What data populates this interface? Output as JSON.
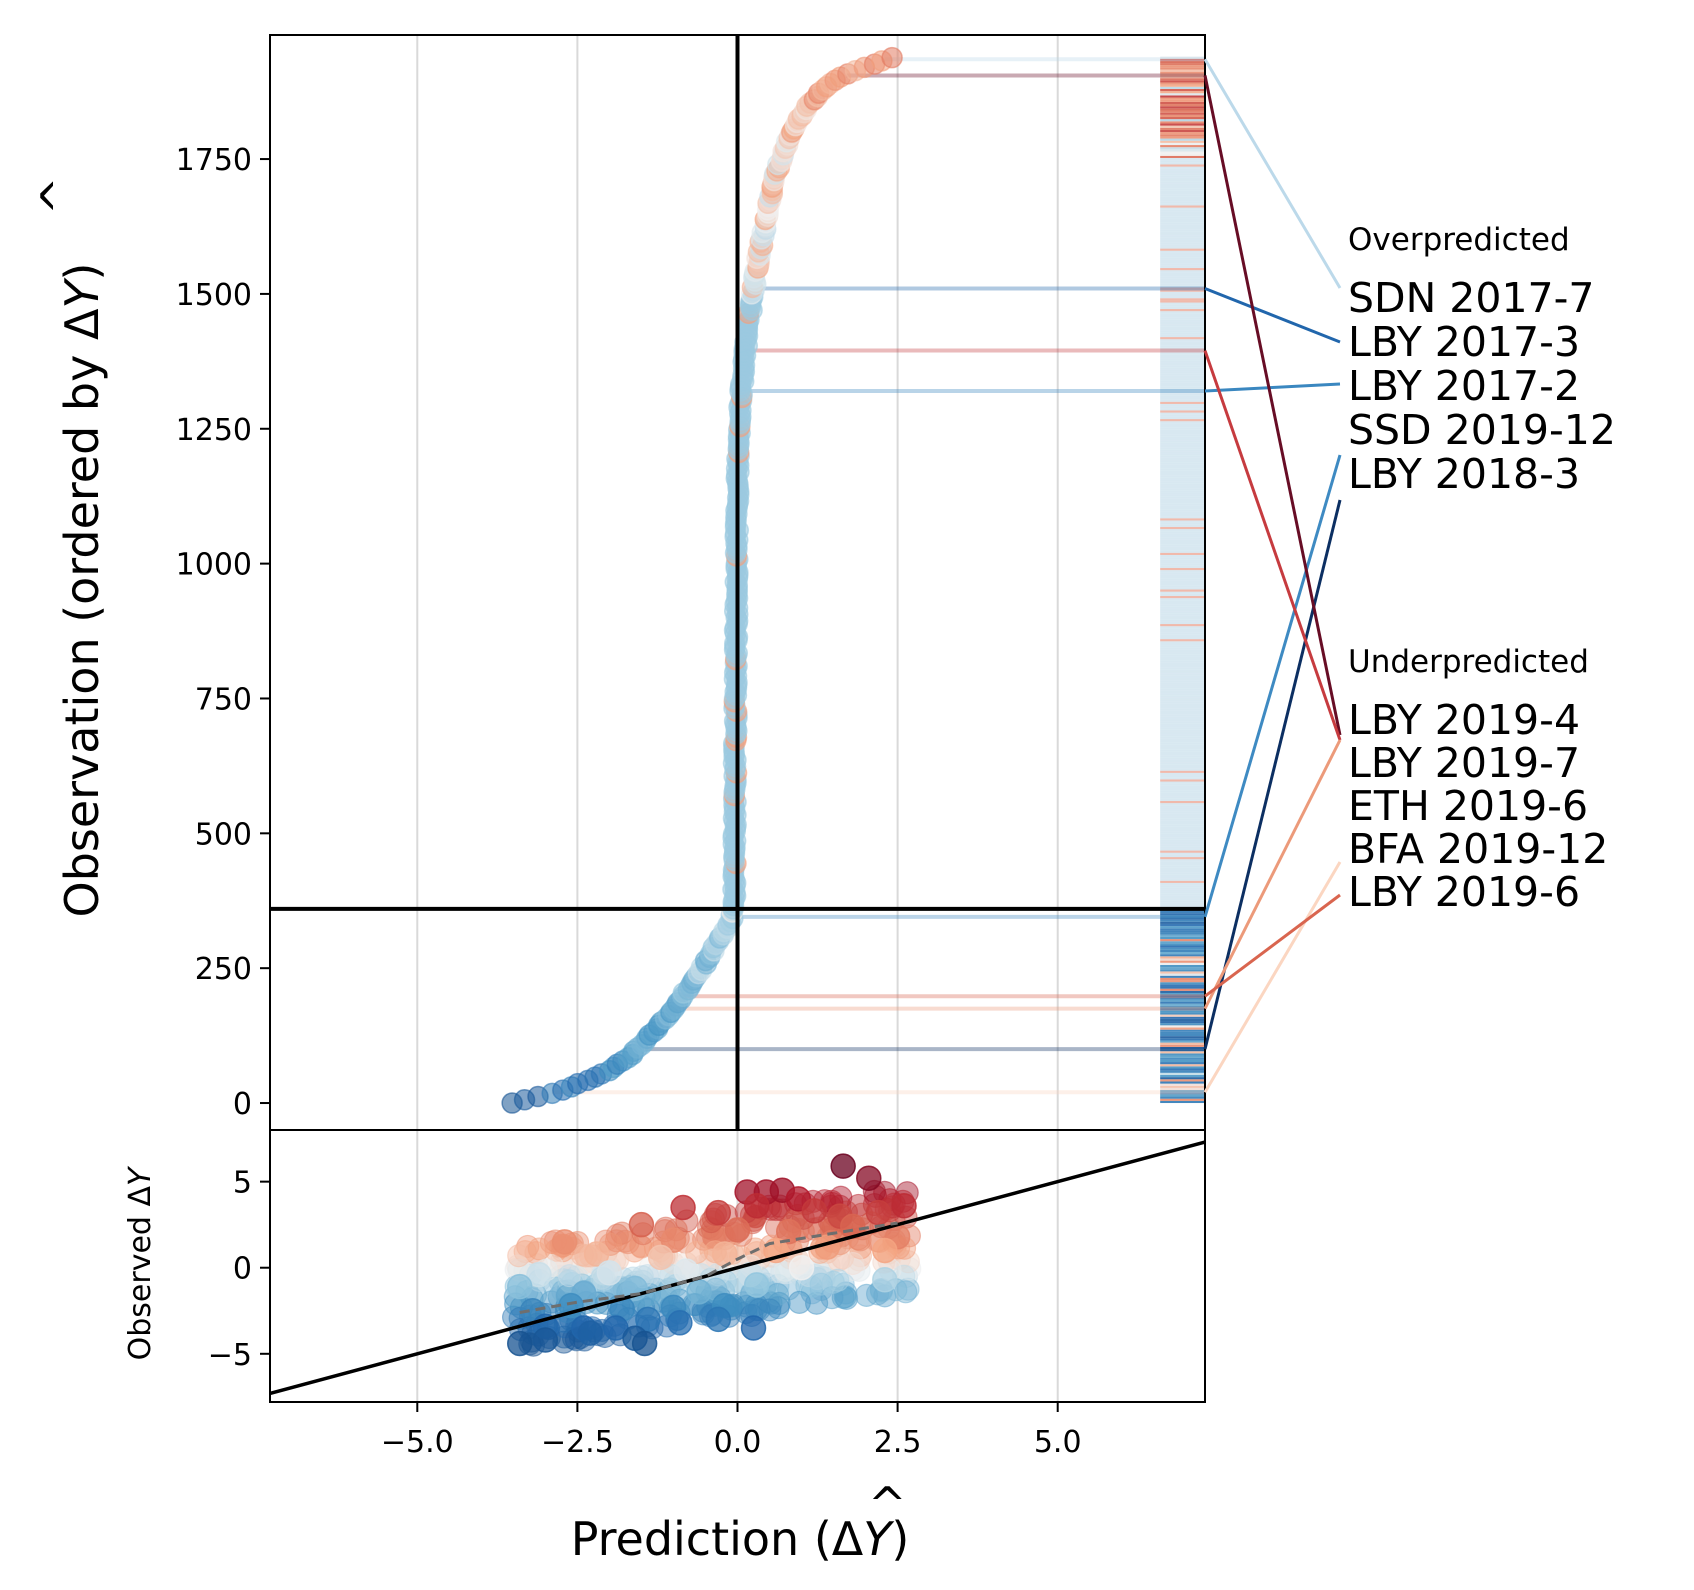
{
  "chart_data": [
    {
      "type": "scatter",
      "panel": "top",
      "ylabel": "Observation (ordered by ΔŶ)",
      "ylabel_parts": {
        "main": "Observation (ordered by ",
        "delta": "Δ",
        "y": "Y",
        "close": ")"
      },
      "xlim": [
        -7.3,
        7.3
      ],
      "ylim": [
        -50,
        1980
      ],
      "yticks": [
        0,
        250,
        500,
        750,
        1000,
        1250,
        1500,
        1750
      ],
      "ytick_labels": [
        "0",
        "250",
        "500",
        "750",
        "1000",
        "1250",
        "1500",
        "1750"
      ],
      "xgrid": [
        -5.0,
        -2.5,
        0.0,
        2.5,
        5.0
      ],
      "vline_x": 0,
      "hline_y": 360,
      "n_observations": 1940,
      "series_description": "observations sorted by predicted change; x = predicted change, y = rank",
      "sorted_curve_points": [
        {
          "rank": 0,
          "pred": -3.5
        },
        {
          "rank": 10,
          "pred": -3.2
        },
        {
          "rank": 20,
          "pred": -2.8
        },
        {
          "rank": 40,
          "pred": -2.4
        },
        {
          "rank": 60,
          "pred": -2.0
        },
        {
          "rank": 90,
          "pred": -1.65
        },
        {
          "rank": 120,
          "pred": -1.4
        },
        {
          "rank": 160,
          "pred": -1.1
        },
        {
          "rank": 200,
          "pred": -0.85
        },
        {
          "rank": 250,
          "pred": -0.55
        },
        {
          "rank": 300,
          "pred": -0.3
        },
        {
          "rank": 340,
          "pred": -0.08
        },
        {
          "rank": 380,
          "pred": -0.05
        },
        {
          "rank": 600,
          "pred": -0.04
        },
        {
          "rank": 900,
          "pred": -0.02
        },
        {
          "rank": 1100,
          "pred": -0.01
        },
        {
          "rank": 1250,
          "pred": 0.02
        },
        {
          "rank": 1350,
          "pred": 0.08
        },
        {
          "rank": 1450,
          "pred": 0.18
        },
        {
          "rank": 1550,
          "pred": 0.3
        },
        {
          "rank": 1620,
          "pred": 0.42
        },
        {
          "rank": 1700,
          "pred": 0.55
        },
        {
          "rank": 1760,
          "pred": 0.7
        },
        {
          "rank": 1810,
          "pred": 0.9
        },
        {
          "rank": 1850,
          "pred": 1.1
        },
        {
          "rank": 1880,
          "pred": 1.35
        },
        {
          "rank": 1905,
          "pred": 1.65
        },
        {
          "rank": 1920,
          "pred": 2.0
        },
        {
          "rank": 1935,
          "pred": 2.3
        },
        {
          "rank": 1945,
          "pred": 2.6
        }
      ],
      "highlighted_rows": [
        {
          "label": "SDN 2017-7",
          "group": "overpredicted",
          "rank": 1935,
          "pred": 2.3,
          "color": "#bcd9ea"
        },
        {
          "label": "LBY 2017-3",
          "group": "overpredicted",
          "rank": 1510,
          "pred": 0.22,
          "color": "#2166ac"
        },
        {
          "label": "LBY 2017-2",
          "group": "overpredicted",
          "rank": 1320,
          "pred": 0.05,
          "color": "#3a87c0"
        },
        {
          "label": "SSD 2019-12",
          "group": "overpredicted",
          "rank": 345,
          "pred": -0.08,
          "color": "#3e8ac2"
        },
        {
          "label": "LBY 2018-3",
          "group": "overpredicted",
          "rank": 100,
          "pred": -1.45,
          "color": "#0c2f62"
        },
        {
          "label": "LBY 2019-4",
          "group": "underpredicted",
          "rank": 1905,
          "pred": 1.7,
          "color": "#670d25"
        },
        {
          "label": "LBY 2019-7",
          "group": "underpredicted",
          "rank": 1395,
          "pred": 0.12,
          "color": "#c63b3f"
        },
        {
          "label": "ETH 2019-6",
          "group": "underpredicted",
          "rank": 175,
          "pred": -0.95,
          "color": "#ec9a7a"
        },
        {
          "label": "BFA 2019-12",
          "group": "underpredicted",
          "rank": 20,
          "pred": -2.9,
          "color": "#fbd6c1"
        },
        {
          "label": "LBY 2019-6",
          "group": "underpredicted",
          "rank": 198,
          "pred": -0.85,
          "color": "#d9654f"
        }
      ]
    },
    {
      "type": "scatter",
      "panel": "bottom",
      "xlabel": "Prediction (ΔŶ)",
      "xlabel_parts": {
        "main": "Prediction (",
        "delta": "Δ",
        "y": "Y",
        "close": ")"
      },
      "ylabel": "Observed ΔY",
      "ylabel_parts": {
        "main": "Observed ",
        "delta": "Δ",
        "y": "Y"
      },
      "xlim": [
        -7.3,
        7.3
      ],
      "ylim": [
        -7.8,
        8.0
      ],
      "xticks": [
        -5.0,
        -2.5,
        0.0,
        2.5,
        5.0
      ],
      "xtick_labels": [
        "−5.0",
        "−2.5",
        "0.0",
        "2.5",
        "5.0"
      ],
      "yticks": [
        -5,
        0,
        5
      ],
      "ytick_labels": [
        "−5",
        "0",
        "5"
      ],
      "identity_line": {
        "x": [
          -7.3,
          7.3
        ],
        "y": [
          -7.3,
          7.3
        ]
      },
      "trend_line": {
        "x": [
          -3.4,
          -2.5,
          -1.5,
          -0.5,
          0.0,
          0.5,
          1.5,
          2.5
        ],
        "y": [
          -2.6,
          -2.0,
          -1.5,
          -0.5,
          0.5,
          1.4,
          2.0,
          2.6
        ]
      },
      "points": [
        {
          "x": 1.65,
          "y": 5.9
        },
        {
          "x": 2.05,
          "y": 5.2
        },
        {
          "x": 0.15,
          "y": 4.4
        },
        {
          "x": 0.45,
          "y": 4.4
        },
        {
          "x": 0.7,
          "y": 4.5
        },
        {
          "x": 0.95,
          "y": 4.0
        },
        {
          "x": -0.85,
          "y": 3.5
        },
        {
          "x": -0.3,
          "y": 3.2
        },
        {
          "x": 0.3,
          "y": 3.6
        },
        {
          "x": 1.2,
          "y": 3.3
        },
        {
          "x": 1.6,
          "y": 3.0
        },
        {
          "x": 2.6,
          "y": 3.6
        },
        {
          "x": 2.2,
          "y": 3.2
        },
        {
          "x": -1.5,
          "y": 2.5
        },
        {
          "x": -2.7,
          "y": 1.5
        },
        {
          "x": -1.0,
          "y": 1.6
        },
        {
          "x": 0.0,
          "y": 2.2
        },
        {
          "x": 0.8,
          "y": 2.1
        },
        {
          "x": 1.8,
          "y": 2.4
        },
        {
          "x": 2.5,
          "y": 1.8
        },
        {
          "x": -2.2,
          "y": 0.8
        },
        {
          "x": -1.2,
          "y": 0.6
        },
        {
          "x": -0.2,
          "y": 0.8
        },
        {
          "x": 0.6,
          "y": 1.0
        },
        {
          "x": 1.4,
          "y": 1.2
        },
        {
          "x": 2.3,
          "y": 1.0
        },
        {
          "x": -3.1,
          "y": -0.4
        },
        {
          "x": -2.0,
          "y": -0.3
        },
        {
          "x": -0.8,
          "y": -0.2
        },
        {
          "x": 0.2,
          "y": -0.4
        },
        {
          "x": 1.0,
          "y": 0.0
        },
        {
          "x": 2.3,
          "y": -0.7
        },
        {
          "x": -3.4,
          "y": -1.1
        },
        {
          "x": -2.4,
          "y": -1.5
        },
        {
          "x": -1.6,
          "y": -1.2
        },
        {
          "x": -0.6,
          "y": -1.4
        },
        {
          "x": 0.3,
          "y": -1.0
        },
        {
          "x": -3.2,
          "y": -2.5
        },
        {
          "x": -2.6,
          "y": -2.2
        },
        {
          "x": -1.8,
          "y": -2.4
        },
        {
          "x": -1.0,
          "y": -2.3
        },
        {
          "x": -0.2,
          "y": -2.2
        },
        {
          "x": -3.0,
          "y": -3.4
        },
        {
          "x": -2.4,
          "y": -3.5
        },
        {
          "x": -1.9,
          "y": -3.5
        },
        {
          "x": -1.4,
          "y": -3.0
        },
        {
          "x": -0.9,
          "y": -3.2
        },
        {
          "x": -0.3,
          "y": -3.0
        },
        {
          "x": 0.25,
          "y": -3.5
        },
        {
          "x": -3.4,
          "y": -4.4
        },
        {
          "x": -3.0,
          "y": -4.2
        },
        {
          "x": -2.3,
          "y": -3.8
        },
        {
          "x": -1.6,
          "y": -4.1
        },
        {
          "x": -1.45,
          "y": -4.4
        }
      ]
    }
  ],
  "labels": {
    "overpredicted_header": "Overpredicted",
    "underpredicted_header": "Underpredicted",
    "overpredicted": [
      "SDN 2017-7",
      "LBY 2017-3",
      "LBY 2017-2",
      "SSD 2019-12",
      "LBY 2018-3"
    ],
    "underpredicted": [
      "LBY 2019-4",
      "LBY 2019-7",
      "ETH 2019-6",
      "BFA 2019-12",
      "LBY 2019-6"
    ]
  },
  "colors": {
    "frame": "#000000",
    "grid": "#d9d9d9",
    "trend": "#6e6e6e"
  }
}
